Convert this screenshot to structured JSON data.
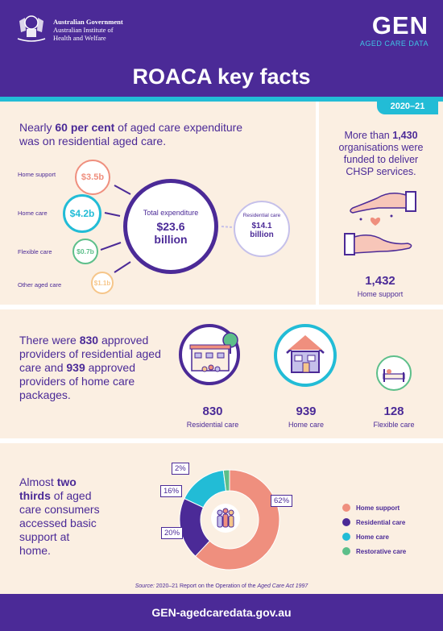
{
  "header": {
    "gov_line1": "Australian Government",
    "gov_line2": "Australian Institute of",
    "gov_line3": "Health and Welfare",
    "logo": "GEN",
    "logo_sub": "AGED CARE DATA",
    "title": "ROACA key facts",
    "year": "2020–21"
  },
  "expenditure": {
    "intro_pre": "Nearly ",
    "intro_bold": "60 per cent",
    "intro_post": " of aged care expenditure was on residential aged care.",
    "items": [
      {
        "label": "Home support",
        "value": "$3.5b",
        "color": "#ef8f7e"
      },
      {
        "label": "Home care",
        "value": "$4.2b",
        "color": "#22bcd6"
      },
      {
        "label": "Flexible care",
        "value": "$0.7b",
        "color": "#5dbf8a"
      },
      {
        "label": "Other aged care",
        "value": "$1.1b",
        "color": "#f6c68a"
      }
    ],
    "total_label": "Total expenditure",
    "total_value": "$23.6",
    "total_unit": "billion",
    "residential_label": "Residential care",
    "residential_value": "$14.1",
    "residential_unit": "billion"
  },
  "chsp": {
    "pre": "More than ",
    "bold": "1,430",
    "post": " organisations were funded to deliver CHSP services.",
    "count": "1,432",
    "count_label": "Home support"
  },
  "providers": {
    "text_pre": "There were ",
    "text_bold1": "830",
    "text_mid": " approved providers of residential aged care and ",
    "text_bold2": "939",
    "text_post": " approved providers of home care packages.",
    "stats": [
      {
        "value": "830",
        "label": "Residential care"
      },
      {
        "value": "939",
        "label": "Home care"
      },
      {
        "value": "128",
        "label": "Flexible care"
      }
    ]
  },
  "consumers": {
    "pre": "Almost ",
    "bold": "two thirds",
    "post": " of aged care consumers accessed basic support at home."
  },
  "chart_data": {
    "type": "pie",
    "categories": [
      "Home support",
      "Residential care",
      "Home care",
      "Restorative care"
    ],
    "values": [
      62,
      20,
      16,
      2
    ],
    "labels": [
      "62%",
      "20%",
      "16%",
      "2%"
    ],
    "colors": [
      "#ef8f7e",
      "#4b2a97",
      "#22bcd6",
      "#5dbf8a"
    ],
    "legend_position": "right"
  },
  "source": {
    "label": "Source:",
    "text": " 2020–21 Report on the Operation of the ",
    "italic": "Aged Care Act 1997"
  },
  "footer": {
    "url": "GEN-agedcaredata.gov.au"
  }
}
